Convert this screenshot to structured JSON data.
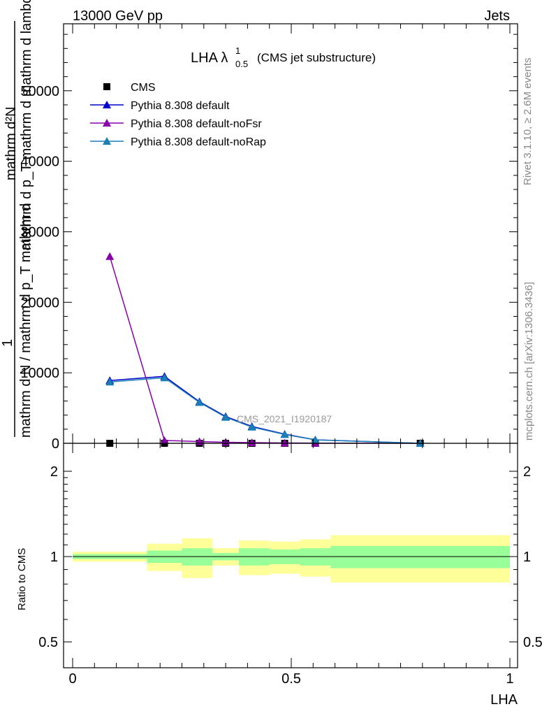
{
  "header": {
    "left": "13000 GeV pp",
    "right": "Jets"
  },
  "side_labels": {
    "rivet": "Rivet 3.1.10, ≥ 2.6M events",
    "mcplots": "mcplots.cern.ch [arXiv:1306.3436]"
  },
  "chart_data": [
    {
      "type": "line",
      "title_main": "LHA λ",
      "title_sup": "1",
      "title_sub": "0.5",
      "title_suffix": "(CMS jet substructure)",
      "watermark": "CMS_2021_I1920187",
      "ylabel": {
        "lines": [
          "mathrm d²N",
          "mathrm d p_T mathrm d mathrm d lambda",
          "1",
          "mathrm d N / mathrm d p_T mathrm d"
        ]
      },
      "xlabel": "LHA",
      "xlim": [
        0,
        1
      ],
      "ylim": [
        0,
        59500
      ],
      "yticks": [
        0,
        10000,
        20000,
        30000,
        40000,
        50000
      ],
      "ytick_labels": [
        "0",
        "10000",
        "20000",
        "30000",
        "40000",
        "50000"
      ],
      "legend_position": "top-left",
      "series": [
        {
          "name": "CMS",
          "color": "#000000",
          "marker": "square",
          "line": false,
          "x": [
            0.085,
            0.21,
            0.29,
            0.35,
            0.41,
            0.485,
            0.555,
            0.795
          ],
          "y": [
            0,
            0,
            0,
            0,
            0,
            0,
            0,
            0
          ]
        },
        {
          "name": "Pythia 8.308 default",
          "color": "#0000cc",
          "marker": "triangle",
          "line": true,
          "x": [
            0.085,
            0.21,
            0.29,
            0.35,
            0.41,
            0.485,
            0.555,
            0.795
          ],
          "y": [
            8900,
            9500,
            5900,
            3800,
            2400,
            1300,
            500,
            0
          ]
        },
        {
          "name": "Pythia 8.308 default-noFsr",
          "color": "#8800aa",
          "marker": "triangle",
          "line": true,
          "x": [
            0.085,
            0.21,
            0.29,
            0.35,
            0.41,
            0.485,
            0.555,
            0.795
          ],
          "y": [
            26500,
            400,
            250,
            150,
            100,
            50,
            30,
            0
          ]
        },
        {
          "name": "Pythia 8.308 default-noRap",
          "color": "#1a7fb5",
          "marker": "triangle",
          "line": true,
          "x": [
            0.085,
            0.21,
            0.29,
            0.35,
            0.41,
            0.485,
            0.555,
            0.795
          ],
          "y": [
            8700,
            9300,
            5800,
            3700,
            2300,
            1250,
            480,
            0
          ]
        }
      ]
    },
    {
      "type": "area",
      "ylabel": "Ratio to CMS",
      "xlabel": "LHA",
      "xlim": [
        0,
        1
      ],
      "xticks": [
        0,
        0.5,
        1
      ],
      "xtick_labels": [
        "0",
        "0.5",
        "1"
      ],
      "ylim": [
        0.35,
        2.3
      ],
      "yticks": [
        0.5,
        1,
        2
      ],
      "ytick_labels": [
        "0.5",
        "1",
        "2"
      ],
      "reference_line": 1,
      "bands": {
        "edges": [
          0,
          0.17,
          0.25,
          0.32,
          0.38,
          0.45,
          0.52,
          0.59,
          1.0
        ],
        "yellow": {
          "color": "#ffff99",
          "lo": [
            0.96,
            0.89,
            0.84,
            0.93,
            0.86,
            0.87,
            0.85,
            0.81
          ],
          "hi": [
            1.04,
            1.11,
            1.16,
            1.07,
            1.14,
            1.13,
            1.15,
            1.19
          ]
        },
        "green": {
          "color": "#99ff99",
          "lo": [
            0.98,
            0.95,
            0.93,
            0.97,
            0.93,
            0.94,
            0.93,
            0.91
          ],
          "hi": [
            1.02,
            1.05,
            1.07,
            1.03,
            1.07,
            1.06,
            1.07,
            1.09
          ]
        }
      }
    }
  ]
}
